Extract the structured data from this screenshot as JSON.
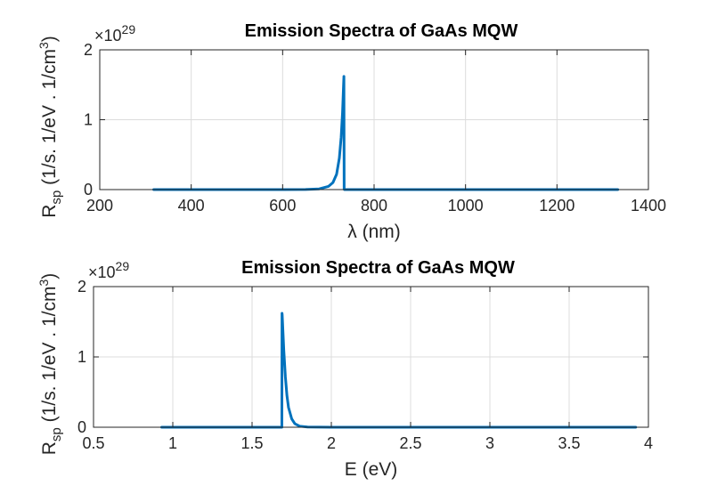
{
  "colors": {
    "series": "#0072bd",
    "axis": "#262626",
    "grid": "#dcdcdc"
  },
  "chart_data": [
    {
      "type": "line",
      "title": "Emission Spectra of GaAs MQW",
      "xlabel": "λ (nm)",
      "ylabel": {
        "main": "R",
        "sub": "sp",
        "rest": " (1/s. 1/eV . 1/cm",
        "sup": "3",
        "close": ")"
      },
      "exponent": {
        "prefix": "×10",
        "power": "29"
      },
      "xlim": [
        200,
        1400
      ],
      "ylim": [
        0,
        2
      ],
      "xticks": [
        200,
        400,
        600,
        800,
        1000,
        1200,
        1400
      ],
      "xtick_labels": [
        "200",
        "400",
        "600",
        "800",
        "1000",
        "1200",
        "1400"
      ],
      "yticks": [
        0,
        1,
        2
      ],
      "ytick_labels": [
        "0",
        "1",
        "2"
      ],
      "grid": true,
      "series": [
        {
          "x": [
            318,
            600,
            650,
            680,
            700,
            710,
            718,
            724,
            728,
            731,
            733,
            734,
            734.5,
            735,
            800,
            1000,
            1200,
            1333
          ],
          "y": [
            0,
            0,
            0.002,
            0.01,
            0.045,
            0.1,
            0.22,
            0.45,
            0.75,
            1.1,
            1.45,
            1.62,
            0.01,
            0,
            0,
            0,
            0,
            0
          ]
        }
      ]
    },
    {
      "type": "line",
      "title": "Emission Spectra of GaAs MQW",
      "xlabel": "E (eV)",
      "ylabel": {
        "main": "R",
        "sub": "sp",
        "rest": " (1/s. 1/eV . 1/cm",
        "sup": "3",
        "close": ")"
      },
      "exponent": {
        "prefix": "×10",
        "power": "29"
      },
      "xlim": [
        0.5,
        4
      ],
      "ylim": [
        0,
        2
      ],
      "xticks": [
        0.5,
        1,
        1.5,
        2,
        2.5,
        3,
        3.5,
        4
      ],
      "xtick_labels": [
        "0.5",
        "1",
        "1.5",
        "2",
        "2.5",
        "3",
        "3.5",
        "4"
      ],
      "yticks": [
        0,
        1,
        2
      ],
      "ytick_labels": [
        "0",
        "1",
        "2"
      ],
      "grid": true,
      "series": [
        {
          "x": [
            0.93,
            1.5,
            1.688,
            1.689,
            1.69,
            1.695,
            1.7,
            1.71,
            1.72,
            1.73,
            1.75,
            1.77,
            1.8,
            1.85,
            2.0,
            3.0,
            3.92
          ],
          "y": [
            0,
            0,
            0,
            1.62,
            1.6,
            1.35,
            1.1,
            0.72,
            0.45,
            0.28,
            0.12,
            0.05,
            0.015,
            0.003,
            0,
            0,
            0
          ]
        }
      ]
    }
  ]
}
